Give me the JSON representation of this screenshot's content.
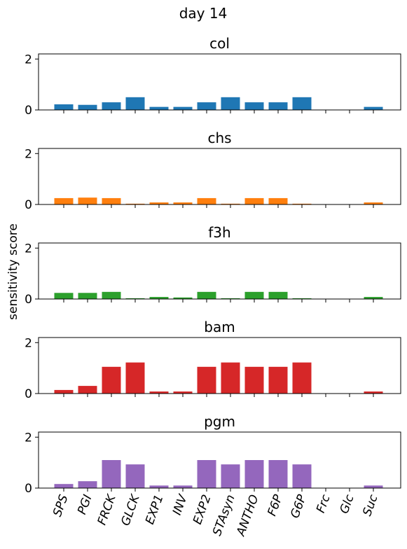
{
  "chart_data": {
    "type": "bar",
    "suptitle": "day 14",
    "ylabel": "sensitivity score",
    "categories": [
      "SPS",
      "PGI",
      "FRCK",
      "GLCK",
      "EXP1",
      "INV",
      "EXP2",
      "STAsyn",
      "ANTHO",
      "F6P",
      "G6P",
      "Frc",
      "Glc",
      "Suc"
    ],
    "ylim": [
      0,
      2.2
    ],
    "yticks": [
      0,
      2
    ],
    "panels": [
      {
        "title": "col",
        "color": "#1f77b4",
        "values": [
          0.22,
          0.2,
          0.3,
          0.5,
          0.12,
          0.12,
          0.3,
          0.5,
          0.3,
          0.3,
          0.5,
          0.0,
          0.0,
          0.12
        ]
      },
      {
        "title": "chs",
        "color": "#ff7f0e",
        "values": [
          0.25,
          0.27,
          0.25,
          0.03,
          0.08,
          0.08,
          0.25,
          0.03,
          0.25,
          0.25,
          0.03,
          0.0,
          0.0,
          0.08
        ]
      },
      {
        "title": "f3h",
        "color": "#2ca02c",
        "values": [
          0.24,
          0.24,
          0.28,
          0.03,
          0.08,
          0.06,
          0.28,
          0.03,
          0.28,
          0.28,
          0.03,
          0.0,
          0.0,
          0.08
        ]
      },
      {
        "title": "bam",
        "color": "#d62728",
        "values": [
          0.14,
          0.3,
          1.05,
          1.22,
          0.08,
          0.08,
          1.05,
          1.22,
          1.05,
          1.05,
          1.22,
          0.0,
          0.0,
          0.08
        ]
      },
      {
        "title": "pgm",
        "color": "#9467bd",
        "values": [
          0.16,
          0.27,
          1.1,
          0.93,
          0.1,
          0.1,
          1.1,
          0.93,
          1.1,
          1.1,
          0.93,
          0.0,
          0.0,
          0.1
        ]
      }
    ]
  }
}
